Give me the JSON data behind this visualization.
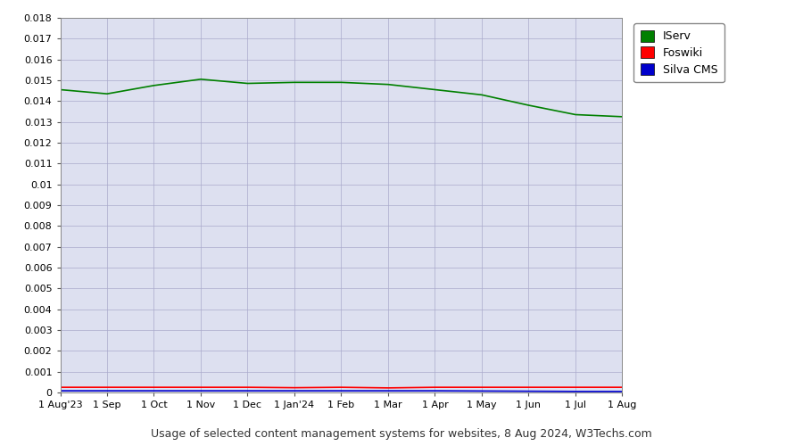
{
  "title": "Usage of selected content management systems for websites, 8 Aug 2024, W3Techs.com",
  "legend_labels": [
    "IServ",
    "Foswiki",
    "Silva CMS"
  ],
  "legend_colors": [
    "#008000",
    "#ff0000",
    "#0000cc"
  ],
  "plot_bg_color": "#dde0f0",
  "fig_bg_color": "#ffffff",
  "ylim": [
    0,
    0.018
  ],
  "yticks": [
    0,
    0.001,
    0.002,
    0.003,
    0.004,
    0.005,
    0.006,
    0.007,
    0.008,
    0.009,
    0.01,
    0.011,
    0.012,
    0.013,
    0.014,
    0.015,
    0.016,
    0.017,
    0.018
  ],
  "ytick_labels": [
    "0",
    "0.001",
    "0.002",
    "0.003",
    "0.004",
    "0.005",
    "0.006",
    "0.007",
    "0.008",
    "0.009",
    "0.01",
    "0.011",
    "0.012",
    "0.013",
    "0.014",
    "0.015",
    "0.016",
    "0.017",
    "0.018"
  ],
  "xtick_labels": [
    "1 Aug'23",
    "1 Sep",
    "1 Oct",
    "1 Nov",
    "1 Dec",
    "1 Jan'24",
    "1 Feb",
    "1 Mar",
    "1 Apr",
    "1 May",
    "1 Jun",
    "1 Jul",
    "1 Aug"
  ],
  "iserv_data": [
    0.01455,
    0.01435,
    0.01475,
    0.01505,
    0.01485,
    0.0149,
    0.0149,
    0.0148,
    0.01455,
    0.0143,
    0.0138,
    0.01335,
    0.01325
  ],
  "foswiki_data": [
    0.00025,
    0.00025,
    0.00025,
    0.00025,
    0.00025,
    0.00023,
    0.00025,
    0.00022,
    0.00025,
    0.00025,
    0.00025,
    0.00025,
    0.00025
  ],
  "silva_data": [
    8e-05,
    8e-05,
    8e-05,
    8e-05,
    8e-05,
    8e-05,
    8e-05,
    8e-05,
    8e-05,
    7e-05,
    6e-05,
    5e-05,
    5e-05
  ],
  "grid_color": "#aaaacc",
  "line_width": 1.2,
  "tick_color": "#555555",
  "spine_color": "#888888"
}
